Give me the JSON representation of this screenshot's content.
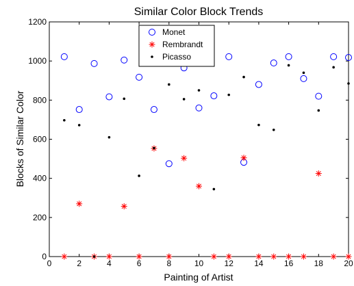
{
  "chart_data": {
    "type": "scatter",
    "title": "Similar Color Block Trends",
    "xlabel": "Painting of Artist",
    "ylabel": "Blocks of Similar Color",
    "xlim": [
      0,
      20
    ],
    "ylim": [
      0,
      1200
    ],
    "xticks": [
      0,
      2,
      4,
      6,
      8,
      10,
      12,
      14,
      16,
      18,
      20
    ],
    "yticks": [
      0,
      200,
      400,
      600,
      800,
      1000,
      1200
    ],
    "grid": false,
    "legend_position": "top-center",
    "series": [
      {
        "name": "Monet",
        "marker": "circle",
        "color": "#0000ff",
        "x": [
          1,
          2,
          3,
          4,
          5,
          6,
          7,
          8,
          9,
          10,
          11,
          12,
          13,
          14,
          15,
          16,
          17,
          18,
          19,
          20
        ],
        "y": [
          1022,
          752,
          987,
          817,
          1005,
          917,
          752,
          475,
          965,
          760,
          822,
          1022,
          482,
          880,
          990,
          1022,
          910,
          820,
          1022,
          1018
        ]
      },
      {
        "name": "Rembrandt",
        "marker": "star",
        "color": "#ff0000",
        "x": [
          1,
          2,
          3,
          4,
          5,
          6,
          7,
          8,
          9,
          10,
          11,
          12,
          13,
          14,
          15,
          16,
          17,
          18,
          19,
          20
        ],
        "y": [
          0,
          270,
          0,
          0,
          257,
          0,
          553,
          0,
          503,
          360,
          0,
          0,
          505,
          0,
          0,
          0,
          0,
          425,
          0,
          0
        ]
      },
      {
        "name": "Picasso",
        "marker": "dot",
        "color": "#000000",
        "x": [
          1,
          2,
          3,
          4,
          5,
          6,
          7,
          8,
          9,
          10,
          11,
          12,
          13,
          14,
          15,
          16,
          17,
          18,
          19,
          20
        ],
        "y": [
          697,
          672,
          0,
          610,
          807,
          413,
          555,
          880,
          805,
          850,
          345,
          827,
          918,
          673,
          648,
          978,
          940,
          747,
          968,
          885
        ]
      }
    ]
  }
}
